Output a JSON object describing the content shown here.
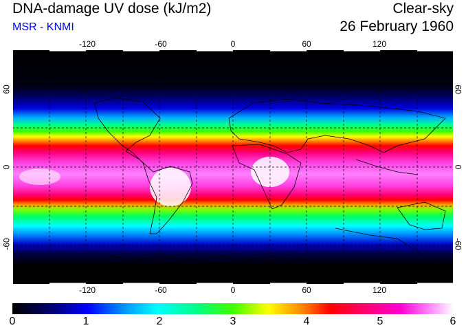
{
  "title": "DNA-damage UV dose (kJ/m2)",
  "subtitle": "MSR - KNMI",
  "subtitle_color": "#0000ff",
  "condition": "Clear-sky",
  "date": "26 February 1960",
  "map": {
    "projection": "equirectangular",
    "lon_range": [
      -180,
      180
    ],
    "lat_range": [
      -90,
      90
    ],
    "grid": "dashed",
    "lon_ticks": [
      "-120",
      "-60",
      "0",
      "60",
      "120"
    ],
    "lat_ticks": [
      "60",
      "0",
      "-60"
    ]
  },
  "colorbar": {
    "min": 0,
    "max": 6,
    "labels": [
      "0",
      "1",
      "2",
      "3",
      "4",
      "5",
      "6"
    ],
    "colors": [
      "#000000",
      "#000080",
      "#0000ff",
      "#00a0ff",
      "#00ffff",
      "#00ff80",
      "#00ff00",
      "#80ff00",
      "#ffff00",
      "#ffa000",
      "#ff0000",
      "#ff0060",
      "#ff00c0",
      "#ff60ff",
      "#ffffff"
    ]
  }
}
